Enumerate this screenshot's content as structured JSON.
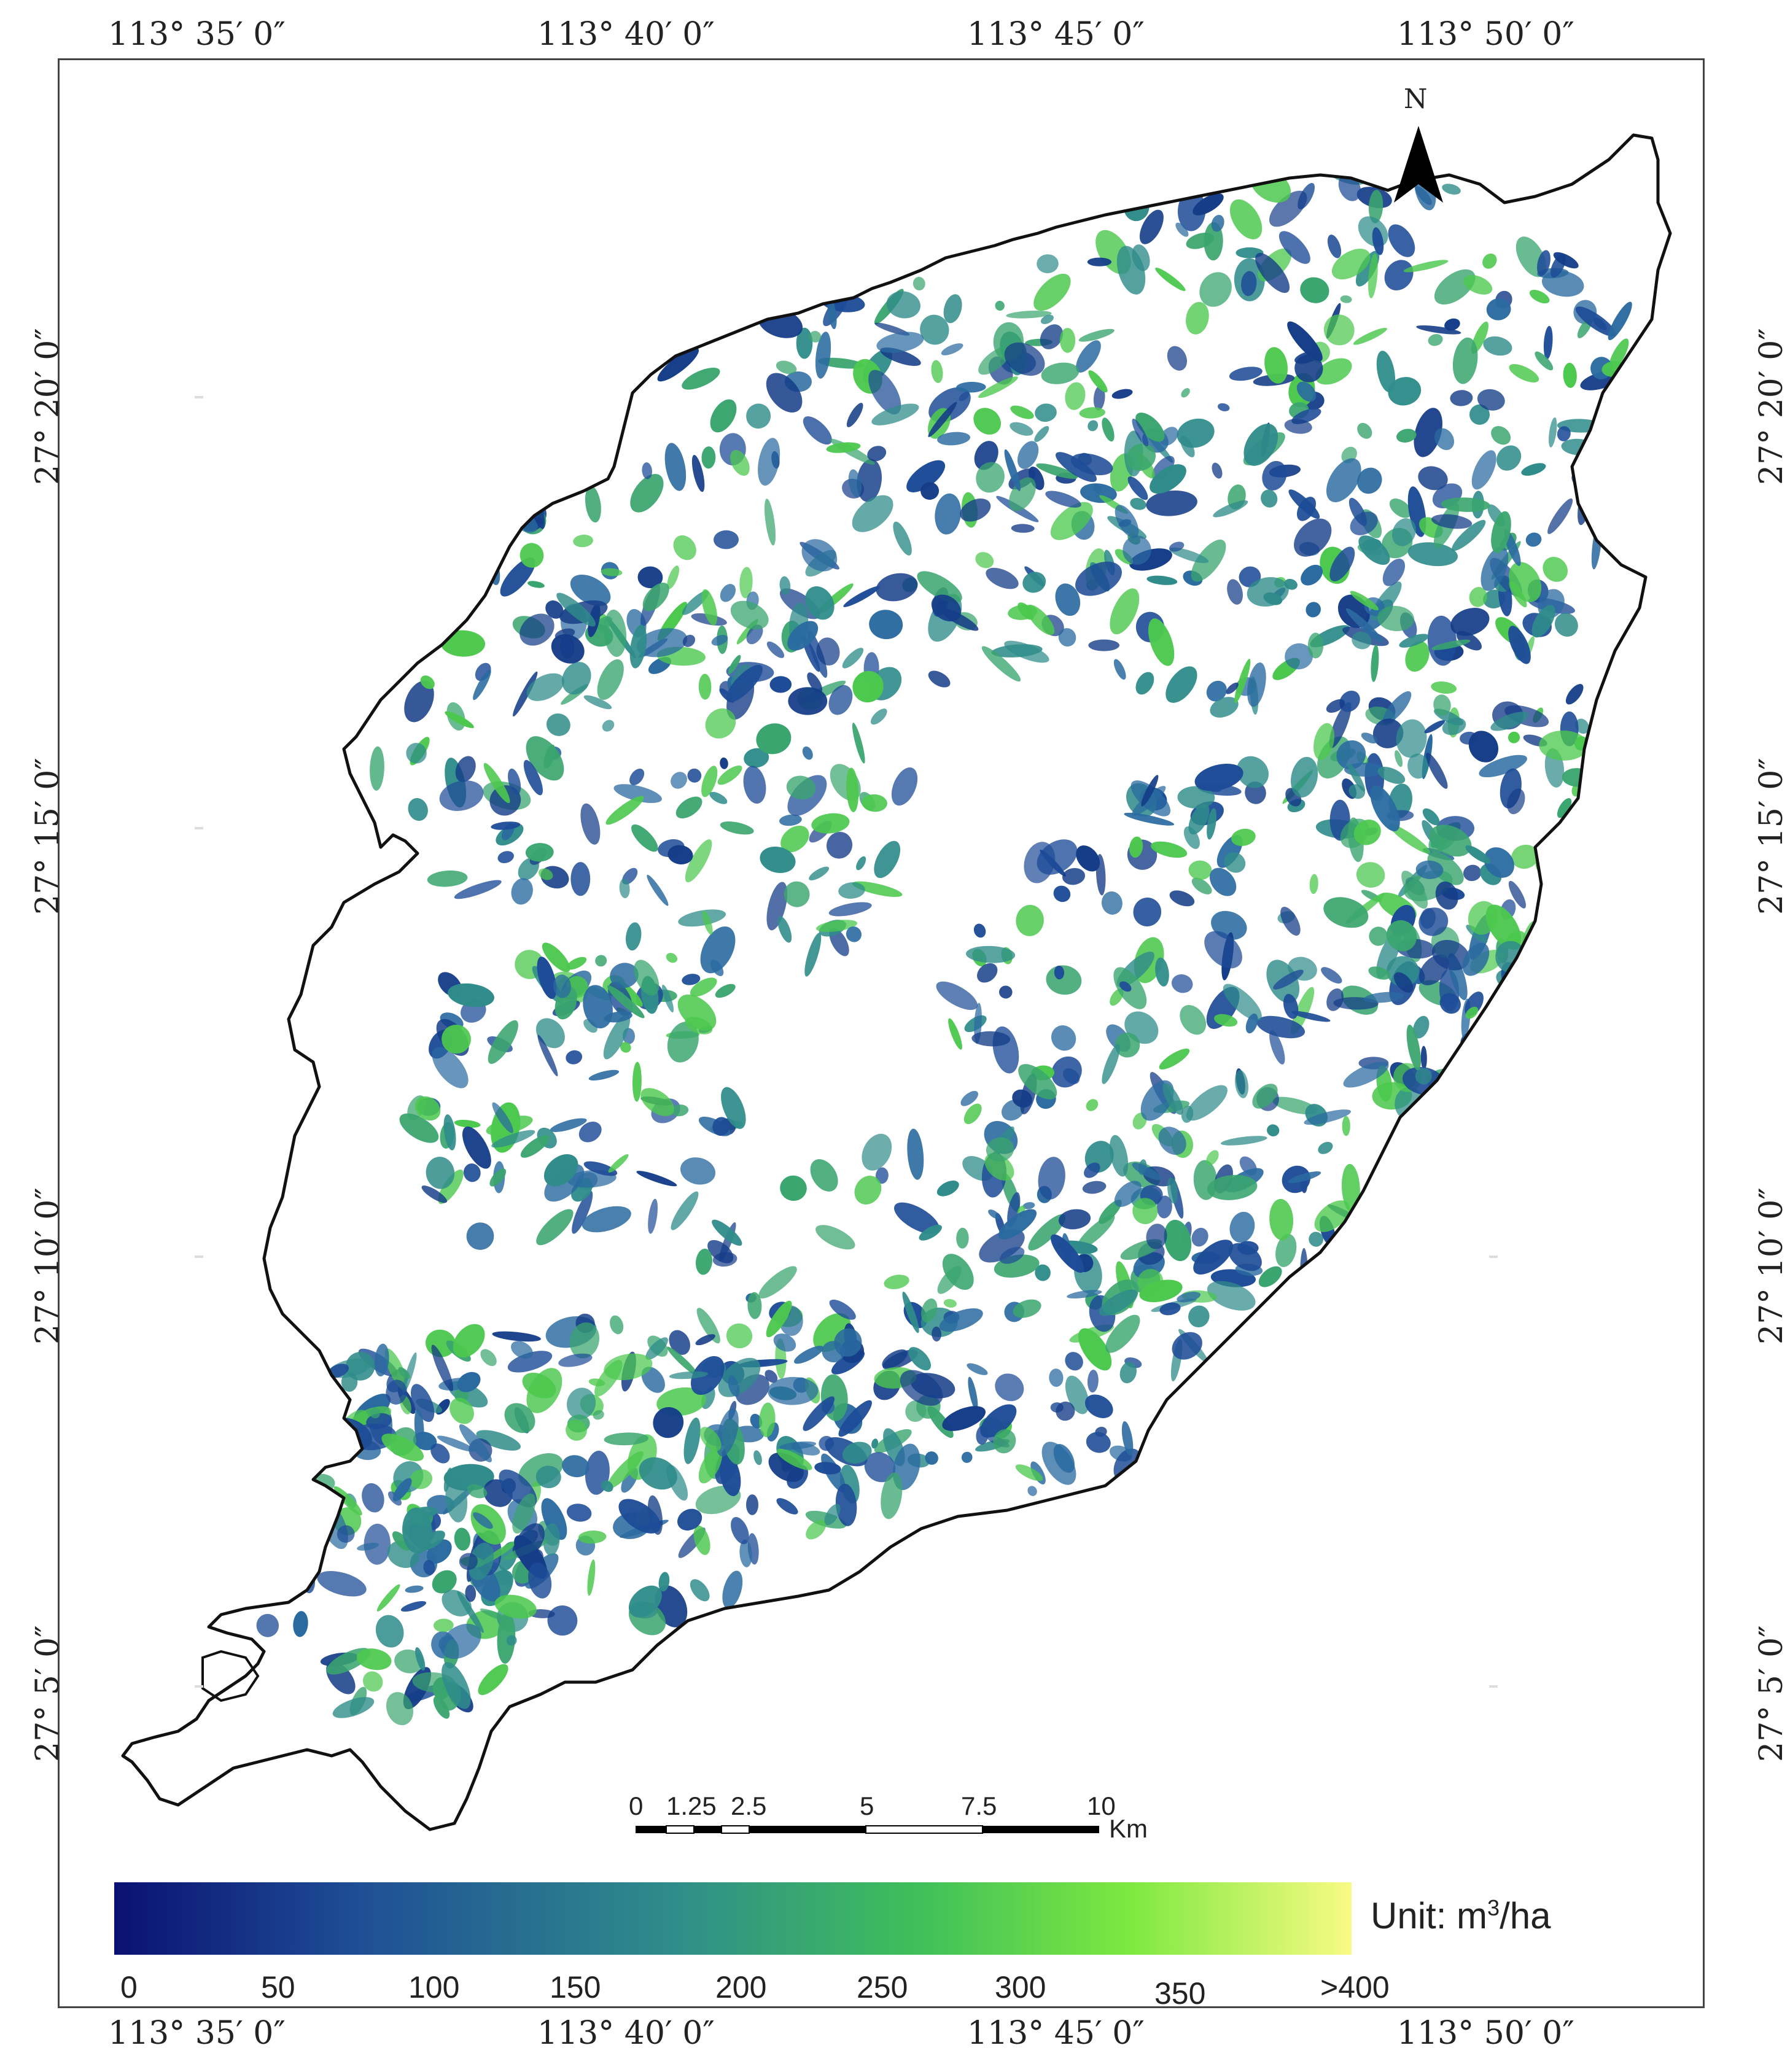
{
  "map": {
    "top_labels": [
      "113°  35′ 0″",
      "113°  40′ 0″",
      "113°  45′ 0″",
      "113°  50′ 0″"
    ],
    "bottom_labels": [
      "113°  35′ 0″",
      "113°  40′ 0″",
      "113°  45′ 0″",
      "113°  50′ 0″"
    ],
    "left_labels": [
      "27°  20′ 0″",
      "27°  15′ 0″",
      "27°  10′ 0″",
      "27°  5′ 0″"
    ],
    "right_labels": [
      "27°  20′ 0″",
      "27°  15′ 0″",
      "27°  10′ 0″",
      "27°  5′ 0″"
    ],
    "north_label": "N",
    "north_arrow_icon": "north-arrow-icon",
    "scale_bar": {
      "ticks": [
        "0",
        "1.25",
        "2.5",
        "5",
        "7.5",
        "10"
      ],
      "unit": "Km"
    },
    "legend": {
      "unit_prefix": "Unit: m",
      "unit_sup": "3",
      "unit_suffix": "/ha",
      "ticks": [
        "0",
        "50",
        "100",
        "150",
        "200",
        "250",
        "300",
        "350",
        ">400"
      ],
      "colors": [
        "#0a1172",
        "#1f4f96",
        "#2f8c8a",
        "#3fbf5a",
        "#7de840",
        "#f8fb84"
      ]
    },
    "colors": {
      "boundary": "#111111",
      "low": "#1e4c97",
      "mid": "#2f8c8a",
      "high": "#4cc84e"
    }
  }
}
